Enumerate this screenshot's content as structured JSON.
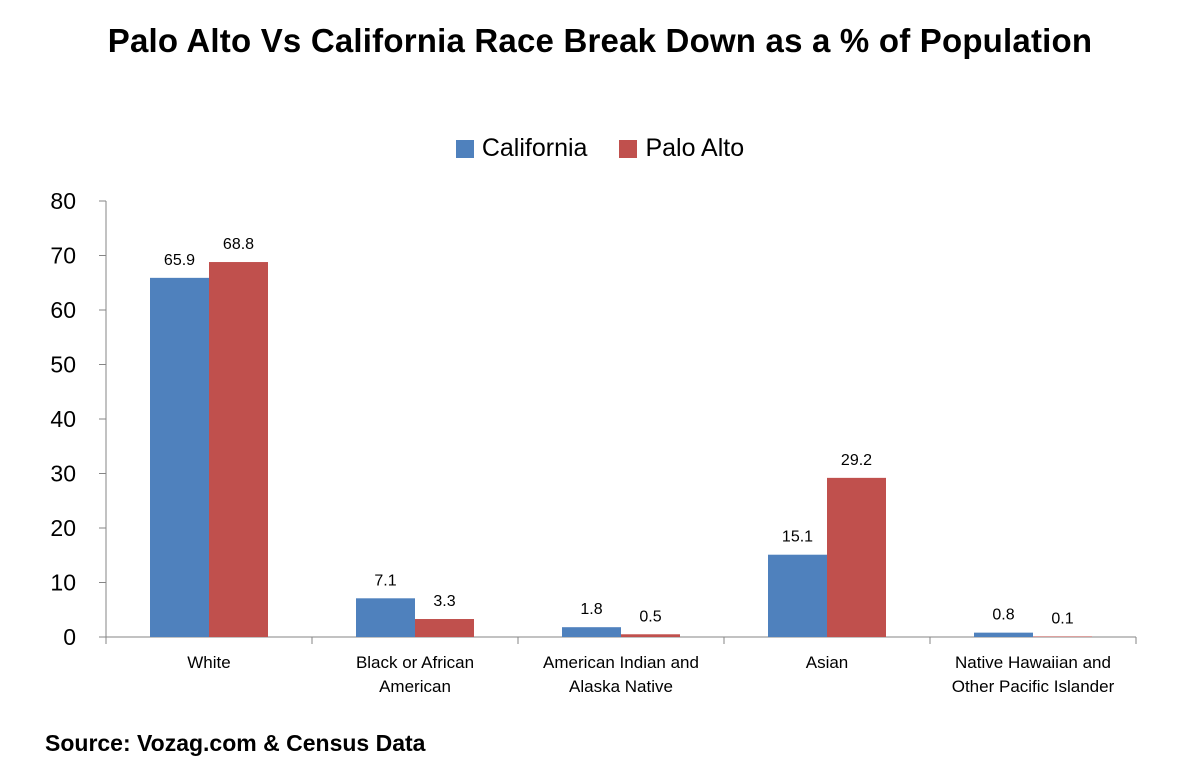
{
  "title": "Palo Alto Vs California Race Break Down as a % of Population",
  "source": "Source: Vozag.com & Census Data",
  "chart_data": {
    "type": "bar",
    "categories": [
      [
        "White"
      ],
      [
        "Black or African",
        "American"
      ],
      [
        "American Indian and",
        "Alaska Native"
      ],
      [
        "Asian"
      ],
      [
        "Native Hawaiian and",
        "Other Pacific Islander"
      ]
    ],
    "series": [
      {
        "name": "California",
        "color": "#4F81BD",
        "values": [
          65.9,
          7.1,
          1.8,
          15.1,
          0.8
        ]
      },
      {
        "name": "Palo Alto",
        "color": "#C0504D",
        "values": [
          68.8,
          3.3,
          0.5,
          29.2,
          0.1
        ]
      }
    ],
    "ylim": [
      0,
      80
    ],
    "yticks": [
      0,
      10,
      20,
      30,
      40,
      50,
      60,
      70,
      80
    ],
    "grid": false,
    "legend_position": "top-center",
    "xlabel": "",
    "ylabel": ""
  }
}
